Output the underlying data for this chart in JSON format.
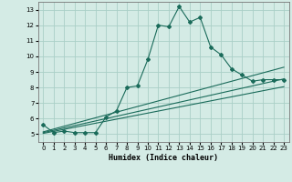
{
  "title": "",
  "xlabel": "Humidex (Indice chaleur)",
  "ylabel": "",
  "xlim": [
    -0.5,
    23.5
  ],
  "ylim": [
    4.5,
    13.5
  ],
  "xticks": [
    0,
    1,
    2,
    3,
    4,
    5,
    6,
    7,
    8,
    9,
    10,
    11,
    12,
    13,
    14,
    15,
    16,
    17,
    18,
    19,
    20,
    21,
    22,
    23
  ],
  "yticks": [
    5,
    6,
    7,
    8,
    9,
    10,
    11,
    12,
    13
  ],
  "background_color": "#d4ebe5",
  "grid_color": "#aacfc7",
  "line_color": "#1a6b5a",
  "main_line_x": [
    0,
    1,
    2,
    3,
    4,
    5,
    6,
    7,
    8,
    9,
    10,
    11,
    12,
    13,
    14,
    15,
    16,
    17,
    18,
    19,
    20,
    21,
    22,
    23
  ],
  "main_line_y": [
    5.6,
    5.1,
    5.2,
    5.1,
    5.1,
    5.1,
    6.1,
    6.5,
    8.0,
    8.1,
    9.8,
    12.0,
    11.9,
    13.2,
    12.2,
    12.5,
    10.6,
    10.1,
    9.2,
    8.8,
    8.4,
    8.5,
    8.5,
    8.5
  ],
  "line2_x": [
    0,
    23
  ],
  "line2_y": [
    5.15,
    9.3
  ],
  "line3_x": [
    0,
    23
  ],
  "line3_y": [
    5.1,
    8.55
  ],
  "line4_x": [
    0,
    23
  ],
  "line4_y": [
    5.05,
    8.05
  ]
}
